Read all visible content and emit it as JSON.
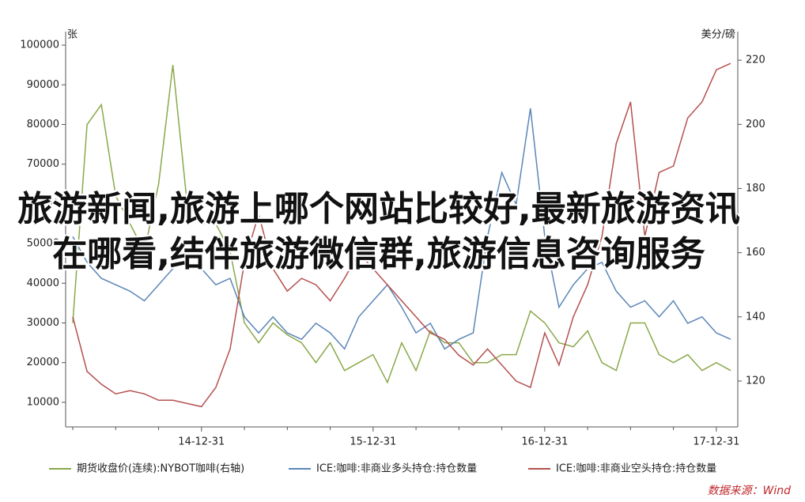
{
  "chart_data": {
    "type": "line",
    "annotation": "旅游新闻,旅游上哪个网站比较好,最新旅游资讯在哪看,结伴旅游微信群,旅游信息咨询服务",
    "y_label": "张",
    "y2_label": "美分/磅",
    "source": "数据来源：Wind",
    "categories": [
      null,
      null,
      null,
      null,
      null,
      null,
      null,
      null,
      null,
      "14-12-31",
      null,
      null,
      null,
      null,
      null,
      null,
      null,
      null,
      null,
      null,
      null,
      "15-12-31",
      null,
      null,
      null,
      null,
      null,
      null,
      null,
      null,
      null,
      null,
      null,
      "16-12-31",
      null,
      null,
      null,
      null,
      null,
      null,
      null,
      null,
      null,
      null,
      null,
      "17-12-31",
      null
    ],
    "ylim": [
      3800,
      103400
    ],
    "yticks": [
      10000,
      20000,
      30000,
      40000,
      50000,
      60000,
      70000,
      80000,
      90000,
      100000
    ],
    "y2lim": [
      105.7,
      228.9
    ],
    "y2ticks": [
      120,
      140,
      160,
      180,
      200,
      220
    ],
    "series": [
      {
        "name": "期货收盘价(连续):NYBOT咖啡(右轴)",
        "color": "#8aa84a",
        "values": [
          30000,
          80000,
          85000,
          62000,
          55000,
          48000,
          65000,
          95000,
          60000,
          55000,
          55000,
          48000,
          30000,
          25000,
          30000,
          27000,
          25000,
          20000,
          25000,
          18000,
          20000,
          22000,
          15000,
          25000,
          18000,
          28000,
          25000,
          25000,
          20000,
          20000,
          22000,
          22000,
          33000,
          30000,
          25000,
          24000,
          28000,
          20000,
          18000,
          30000,
          30000,
          22000,
          20000,
          22000,
          18000,
          20000,
          18000
        ]
      },
      {
        "name": "ICE:咖啡:非商业多头持仓:持仓数量",
        "color": "#5b86b8",
        "axis": "y2",
        "values": [
          165,
          157,
          152,
          150,
          148,
          145,
          150,
          155,
          157,
          155,
          150,
          152,
          140,
          135,
          140,
          135,
          133,
          138,
          135,
          130,
          140,
          145,
          150,
          143,
          135,
          138,
          130,
          133,
          135,
          165,
          185,
          175,
          205,
          165,
          143,
          150,
          155,
          157,
          148,
          143,
          145,
          140,
          145,
          138,
          140,
          135,
          133
        ]
      },
      {
        "name": "ICE:咖啡:非商业空头持仓:持仓数量",
        "color": "#b5504f",
        "axis": "y2",
        "values": [
          140,
          123,
          119,
          116,
          117,
          116,
          114,
          114,
          113,
          112,
          118,
          130,
          157,
          172,
          155,
          148,
          152,
          150,
          145,
          152,
          160,
          155,
          150,
          145,
          140,
          135,
          133,
          128,
          125,
          130,
          125,
          120,
          118,
          135,
          125,
          140,
          150,
          165,
          194,
          207,
          165,
          185,
          187,
          202,
          207,
          217,
          219
        ]
      }
    ]
  }
}
